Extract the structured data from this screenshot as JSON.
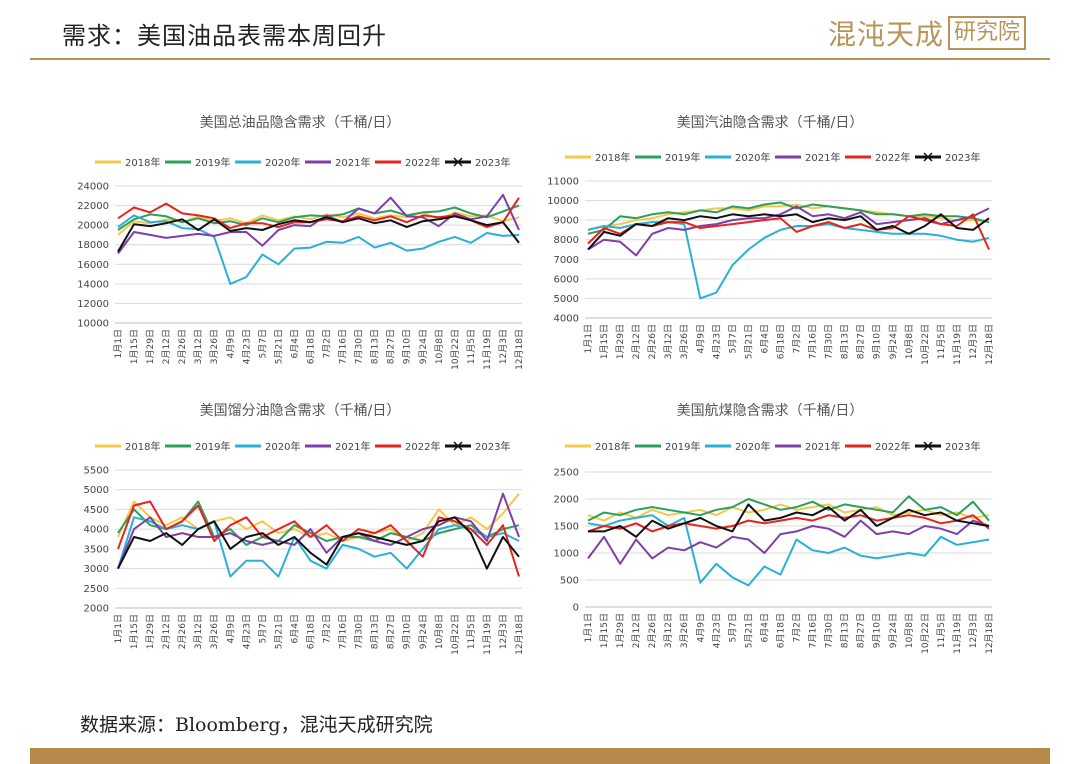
{
  "header": {
    "title": "需求：美国油品表需本周回升",
    "logo_text": "混沌天成",
    "logo_box": "研究院"
  },
  "footer": {
    "source": "数据来源：Bloomberg，混沌天成研究院"
  },
  "colors": {
    "accent": "#b8945a",
    "footer_bar": "#b58a4a"
  },
  "chart_data": [
    {
      "type": "line",
      "title": "美国总油品隐含需求（千桶/日）",
      "ylim": [
        10000,
        24000
      ],
      "yticks": [
        10000,
        12000,
        14000,
        16000,
        18000,
        20000,
        22000,
        24000
      ],
      "categories": [
        "1月1日",
        "1月15日",
        "1月29日",
        "2月12日",
        "2月26日",
        "3月12日",
        "3月26日",
        "4月9日",
        "4月23日",
        "5月7日",
        "5月21日",
        "6月4日",
        "6月18日",
        "7月2日",
        "7月16日",
        "7月30日",
        "8月13日",
        "8月27日",
        "9月10日",
        "9月24日",
        "10月8日",
        "10月22日",
        "11月5日",
        "11月19日",
        "12月3日",
        "12月18日"
      ],
      "series": [
        {
          "name": "2018年",
          "color": "#f5c84a",
          "values": [
            19000,
            20400,
            20200,
            20600,
            20300,
            20900,
            20400,
            20700,
            20200,
            21000,
            20500,
            20900,
            20600,
            21100,
            20800,
            21200,
            20700,
            21000,
            20800,
            21300,
            20600,
            21300,
            20900,
            21000,
            20400,
            20800
          ]
        },
        {
          "name": "2019年",
          "color": "#2ca05a",
          "values": [
            19500,
            20600,
            21100,
            20900,
            20300,
            20700,
            20200,
            20400,
            20000,
            20700,
            20300,
            20800,
            21000,
            20900,
            21100,
            21700,
            21200,
            21500,
            21000,
            21300,
            21400,
            21800,
            21200,
            20800,
            21400,
            22000
          ]
        },
        {
          "name": "2020年",
          "color": "#2ab0d8",
          "values": [
            19800,
            21000,
            20300,
            20400,
            19700,
            19600,
            18800,
            14000,
            14700,
            17000,
            16000,
            17600,
            17700,
            18300,
            18200,
            18800,
            17700,
            18200,
            17400,
            17600,
            18300,
            18800,
            18200,
            19200,
            18900,
            19000
          ]
        },
        {
          "name": "2021年",
          "color": "#7e3fa8",
          "values": [
            17100,
            19300,
            19000,
            18700,
            18900,
            19100,
            18900,
            19300,
            19300,
            17900,
            19500,
            20000,
            19900,
            21000,
            20300,
            21700,
            21200,
            22800,
            20900,
            20800,
            19900,
            21200,
            20600,
            20900,
            23100,
            19500
          ]
        },
        {
          "name": "2022年",
          "color": "#e8231c",
          "values": [
            20700,
            21800,
            21300,
            22200,
            21200,
            21000,
            20700,
            19700,
            20200,
            20200,
            19800,
            20300,
            20300,
            20600,
            20400,
            20900,
            20500,
            20900,
            20300,
            21000,
            20800,
            21000,
            20500,
            19800,
            20300,
            22800
          ]
        },
        {
          "name": "2023年",
          "color": "#111111",
          "values": [
            17300,
            20100,
            19900,
            20200,
            20600,
            19500,
            20600,
            19400,
            19700,
            19500,
            20100,
            20500,
            20300,
            20800,
            20300,
            20700,
            20200,
            20500,
            19800,
            20400,
            20600,
            20900,
            20500,
            20000,
            20300,
            18200
          ]
        }
      ]
    },
    {
      "type": "line",
      "title": "美国汽油隐含需求（千桶/日）",
      "ylim": [
        4000,
        11000
      ],
      "yticks": [
        4000,
        5000,
        6000,
        7000,
        8000,
        9000,
        10000,
        11000
      ],
      "categories": [
        "1月1日",
        "1月15日",
        "1月29日",
        "2月12日",
        "2月26日",
        "3月12日",
        "3月26日",
        "4月9日",
        "4月23日",
        "5月7日",
        "5月21日",
        "6月4日",
        "6月18日",
        "7月2日",
        "7月16日",
        "7月30日",
        "8月13日",
        "8月27日",
        "9月10日",
        "9月24日",
        "10月8日",
        "10月22日",
        "11月5日",
        "11月19日",
        "12月3日",
        "12月18日"
      ],
      "series": [
        {
          "name": "2018年",
          "color": "#f5c84a",
          "values": [
            8500,
            8700,
            8800,
            9000,
            9100,
            9300,
            9400,
            9500,
            9600,
            9600,
            9500,
            9700,
            9700,
            9800,
            9600,
            9700,
            9600,
            9500,
            9400,
            9300,
            9200,
            9200,
            9100,
            9000,
            9000,
            8900
          ]
        },
        {
          "name": "2019年",
          "color": "#2ca05a",
          "values": [
            8300,
            8500,
            9200,
            9100,
            9300,
            9400,
            9300,
            9500,
            9400,
            9700,
            9600,
            9800,
            9900,
            9600,
            9800,
            9700,
            9600,
            9500,
            9300,
            9300,
            9200,
            9300,
            9200,
            9200,
            9100,
            8900
          ]
        },
        {
          "name": "2020年",
          "color": "#2ab0d8",
          "values": [
            8500,
            8700,
            8600,
            8800,
            8900,
            8900,
            8800,
            5000,
            5300,
            6700,
            7500,
            8100,
            8500,
            8700,
            8700,
            8800,
            8600,
            8500,
            8400,
            8300,
            8300,
            8300,
            8200,
            8000,
            7900,
            8100
          ]
        },
        {
          "name": "2021年",
          "color": "#7e3fa8",
          "values": [
            7500,
            8000,
            7900,
            7200,
            8300,
            8600,
            8500,
            8700,
            8800,
            9000,
            9100,
            9100,
            9300,
            9700,
            9200,
            9300,
            9100,
            9400,
            8800,
            8900,
            9000,
            9100,
            8800,
            9000,
            9200,
            9600
          ]
        },
        {
          "name": "2022年",
          "color": "#e8231c",
          "values": [
            7800,
            8600,
            8300,
            8800,
            8700,
            8900,
            8900,
            8600,
            8700,
            8800,
            8900,
            9000,
            9100,
            8400,
            8700,
            8900,
            8600,
            8800,
            8500,
            8600,
            9200,
            9000,
            8800,
            8700,
            9300,
            7500
          ]
        },
        {
          "name": "2023年",
          "color": "#111111",
          "values": [
            7500,
            8400,
            8200,
            8800,
            8700,
            9100,
            9000,
            9200,
            9100,
            9300,
            9200,
            9300,
            9200,
            9300,
            8900,
            9100,
            9000,
            9200,
            8500,
            8700,
            8300,
            8700,
            9300,
            8600,
            8500,
            9100
          ]
        }
      ]
    },
    {
      "type": "line",
      "title": "美国馏分油隐含需求（千桶/日）",
      "ylim": [
        2000,
        5500
      ],
      "yticks": [
        2000,
        2500,
        3000,
        3500,
        4000,
        4500,
        5000,
        5500
      ],
      "categories": [
        "1月1日",
        "1月15日",
        "1月29日",
        "2月12日",
        "2月26日",
        "3月12日",
        "3月26日",
        "4月9日",
        "4月23日",
        "5月7日",
        "5月21日",
        "6月4日",
        "6月18日",
        "7月2日",
        "7月16日",
        "7月30日",
        "8月13日",
        "8月27日",
        "9月10日",
        "9月24日",
        "10月8日",
        "10月22日",
        "11月5日",
        "11月19日",
        "12月3日",
        "12月18日"
      ],
      "series": [
        {
          "name": "2018年",
          "color": "#f5c84a",
          "values": [
            3800,
            4700,
            4300,
            4100,
            4300,
            4000,
            4200,
            4300,
            4000,
            4200,
            3900,
            4000,
            3800,
            3900,
            3700,
            3800,
            3900,
            4000,
            3700,
            3900,
            4500,
            4100,
            4300,
            4000,
            4400,
            4900
          ]
        },
        {
          "name": "2019年",
          "color": "#2ca05a",
          "values": [
            3900,
            4500,
            4100,
            4000,
            4200,
            4700,
            3800,
            4000,
            3600,
            3800,
            3700,
            4100,
            3900,
            3700,
            3800,
            3800,
            3700,
            3900,
            3800,
            3700,
            3900,
            4000,
            4100,
            3800,
            4000,
            4100
          ]
        },
        {
          "name": "2020年",
          "color": "#2ab0d8",
          "values": [
            3000,
            4300,
            4200,
            4000,
            4100,
            4000,
            4200,
            2800,
            3200,
            3200,
            2800,
            3800,
            3200,
            3000,
            3600,
            3500,
            3300,
            3400,
            3000,
            3500,
            4000,
            4100,
            4000,
            3800,
            3900,
            3700
          ]
        },
        {
          "name": "2021年",
          "color": "#7e3fa8",
          "values": [
            3000,
            4000,
            4300,
            3800,
            3900,
            3800,
            3800,
            3900,
            3700,
            3600,
            3700,
            3600,
            4000,
            3400,
            3800,
            3900,
            3700,
            3600,
            3800,
            4000,
            4100,
            4300,
            4200,
            3700,
            4900,
            3800
          ]
        },
        {
          "name": "2022年",
          "color": "#e8231c",
          "values": [
            3500,
            4600,
            4700,
            4000,
            4200,
            4600,
            3700,
            4100,
            4300,
            3800,
            4000,
            4200,
            3800,
            4100,
            3700,
            4000,
            3900,
            4100,
            3700,
            3300,
            4300,
            4200,
            4000,
            3600,
            4100,
            2800
          ]
        },
        {
          "name": "2023年",
          "color": "#111111",
          "values": [
            3000,
            3800,
            3700,
            3900,
            3600,
            4000,
            4200,
            3500,
            3800,
            3900,
            3600,
            3800,
            3400,
            3100,
            3800,
            3900,
            3800,
            3700,
            3600,
            3700,
            4200,
            4300,
            3900,
            3000,
            3800,
            3300
          ]
        }
      ]
    },
    {
      "type": "line",
      "title": "美国航煤隐含需求（千桶/日）",
      "ylim": [
        0,
        2500
      ],
      "yticks": [
        0,
        500,
        1000,
        1500,
        2000,
        2500
      ],
      "categories": [
        "1月1日",
        "1月15日",
        "1月29日",
        "2月12日",
        "2月26日",
        "3月12日",
        "3月26日",
        "4月9日",
        "4月23日",
        "5月7日",
        "5月21日",
        "6月4日",
        "6月18日",
        "7月2日",
        "7月16日",
        "7月30日",
        "8月13日",
        "8月27日",
        "9月10日",
        "9月24日",
        "10月8日",
        "10月22日",
        "11月5日",
        "11月19日",
        "12月3日",
        "12月18日"
      ],
      "series": [
        {
          "name": "2018年",
          "color": "#f5c84a",
          "values": [
            1700,
            1600,
            1750,
            1650,
            1800,
            1700,
            1750,
            1800,
            1700,
            1850,
            1750,
            1800,
            1900,
            1800,
            1850,
            1900,
            1750,
            1800,
            1850,
            1700,
            1750,
            1800,
            1700,
            1750,
            1650,
            1700
          ]
        },
        {
          "name": "2019年",
          "color": "#2ca05a",
          "values": [
            1600,
            1750,
            1700,
            1800,
            1850,
            1800,
            1750,
            1700,
            1800,
            1850,
            2000,
            1900,
            1800,
            1850,
            1950,
            1800,
            1900,
            1850,
            1800,
            1750,
            2050,
            1800,
            1850,
            1700,
            1950,
            1600
          ]
        },
        {
          "name": "2020年",
          "color": "#2ab0d8",
          "values": [
            1550,
            1500,
            1600,
            1650,
            1700,
            1500,
            1650,
            450,
            800,
            550,
            400,
            750,
            600,
            1250,
            1050,
            1000,
            1100,
            950,
            900,
            950,
            1000,
            950,
            1300,
            1150,
            1200,
            1250
          ]
        },
        {
          "name": "2021年",
          "color": "#7e3fa8",
          "values": [
            900,
            1300,
            800,
            1250,
            900,
            1100,
            1050,
            1200,
            1100,
            1300,
            1250,
            1000,
            1350,
            1400,
            1500,
            1450,
            1300,
            1600,
            1350,
            1400,
            1350,
            1500,
            1450,
            1350,
            1600,
            1500
          ]
        },
        {
          "name": "2022年",
          "color": "#e8231c",
          "values": [
            1400,
            1500,
            1450,
            1550,
            1400,
            1500,
            1550,
            1500,
            1450,
            1500,
            1600,
            1550,
            1600,
            1650,
            1600,
            1700,
            1650,
            1700,
            1600,
            1650,
            1700,
            1650,
            1550,
            1600,
            1700,
            1450
          ]
        },
        {
          "name": "2023年",
          "color": "#111111",
          "values": [
            1400,
            1400,
            1500,
            1300,
            1600,
            1450,
            1550,
            1650,
            1500,
            1400,
            1900,
            1600,
            1650,
            1750,
            1700,
            1850,
            1600,
            1800,
            1500,
            1650,
            1800,
            1700,
            1750,
            1600,
            1550,
            1500
          ]
        }
      ]
    }
  ]
}
